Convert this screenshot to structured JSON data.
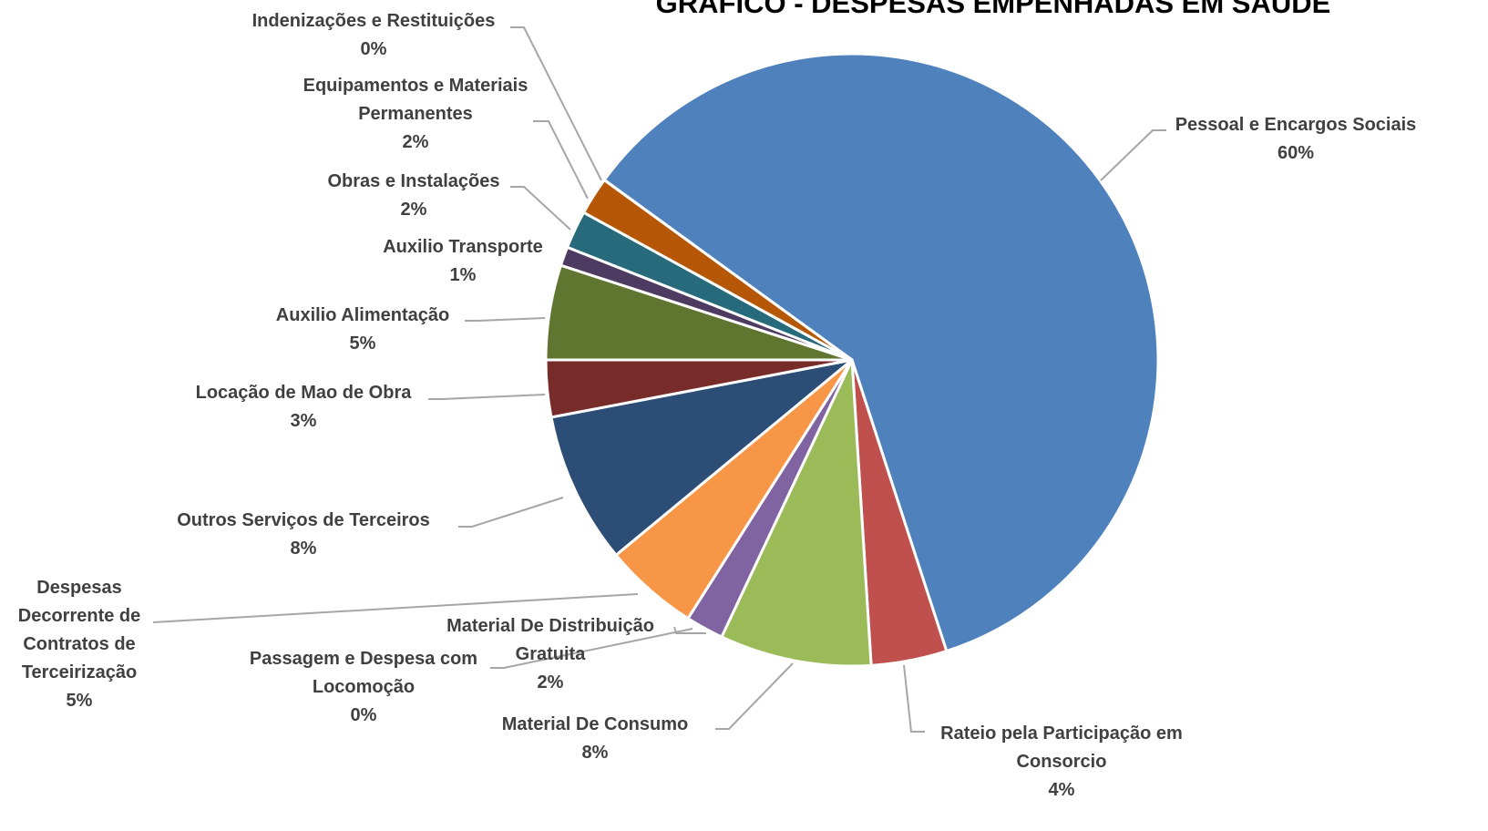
{
  "chart_data": {
    "type": "pie",
    "title": "GRÁFICO - DESPESAS EMPENHADAS EM SAÚDE",
    "categories": [
      "Pessoal e Encargos Sociais",
      "Rateio pela Participação em Consorcio",
      "Material De Consumo",
      "Material De Distribuição Gratuita",
      "Passagem e Despesa com Locomoção",
      "Despesas Decorrente de Contratos de Terceirização",
      "Outros Serviços de Terceiros",
      "Locação de Mao de Obra",
      "Auxilio Alimentação",
      "Auxilio Transporte",
      "Obras e Instalações",
      "Equipamentos e Materiais Permanentes",
      "Indenizações e Restituições"
    ],
    "values": [
      60,
      4,
      8,
      2,
      0,
      5,
      8,
      3,
      5,
      1,
      2,
      2,
      0
    ],
    "value_labels": [
      "60%",
      "4%",
      "8%",
      "2%",
      "0%",
      "5%",
      "8%",
      "3%",
      "5%",
      "1%",
      "2%",
      "2%",
      "0%"
    ],
    "colors": [
      "#4f81bd",
      "#c0504d",
      "#9bbb59",
      "#8064a2",
      "#4bacc6",
      "#f79646",
      "#2c4d75",
      "#772c2a",
      "#5f7530",
      "#4d3b62",
      "#276a7c",
      "#b65708",
      "#729aca"
    ]
  }
}
